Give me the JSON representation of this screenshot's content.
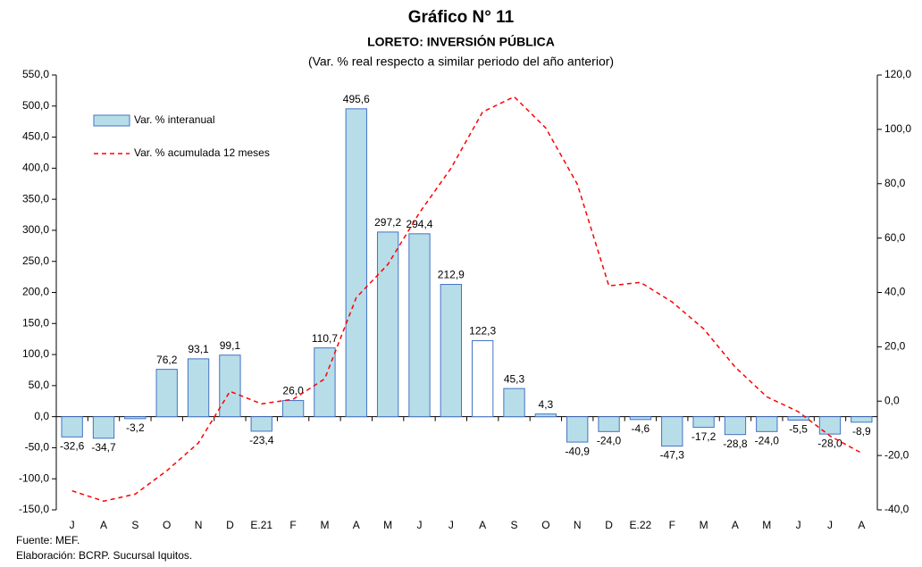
{
  "chart_data": {
    "type": "bar",
    "title": "Gráfico N° 11",
    "subtitle": "LORETO: INVERSIÓN PÚBLICA",
    "note": "(Var. % real respecto a similar periodo del año anterior)",
    "categories": [
      "J",
      "A",
      "S",
      "O",
      "N",
      "D",
      "E.21",
      "F",
      "M",
      "A",
      "M",
      "J",
      "J",
      "A",
      "S",
      "O",
      "N",
      "D",
      "E.22",
      "F",
      "M",
      "A",
      "M",
      "J",
      "J",
      "A"
    ],
    "series": [
      {
        "name": "Var. % interanual",
        "type": "bar",
        "color": "#b7dee8",
        "edge_color": "#4472c4",
        "colors": [
          "#b7dee8",
          "#b7dee8",
          "#b7dee8",
          "#b7dee8",
          "#b7dee8",
          "#b7dee8",
          "#b7dee8",
          "#b7dee8",
          "#b7dee8",
          "#b7dee8",
          "#b7dee8",
          "#b7dee8",
          "#b7dee8",
          "#ffffff",
          "#b7dee8",
          "#b7dee8",
          "#b7dee8",
          "#b7dee8",
          "#b7dee8",
          "#b7dee8",
          "#b7dee8",
          "#b7dee8",
          "#b7dee8",
          "#b7dee8",
          "#b7dee8",
          "#b7dee8"
        ],
        "values": [
          -32.6,
          -34.7,
          -3.2,
          76.2,
          93.1,
          99.1,
          -23.4,
          26.0,
          110.7,
          495.6,
          297.2,
          294.4,
          212.9,
          122.3,
          45.3,
          4.3,
          -40.9,
          -24.0,
          -4.6,
          -47.3,
          -17.2,
          -28.8,
          -24.0,
          -5.5,
          -28.0,
          -8.9
        ],
        "value_labels": [
          "-32,6",
          "-34,7",
          "-3,2",
          "76,2",
          "93,1",
          "99,1",
          "-23,4",
          "26,0",
          "110,7",
          "495,6",
          "297,2",
          "294,4",
          "212,9",
          "122,3",
          "45,3",
          "4,3",
          "-40,9",
          "-24,0",
          "-4,6",
          "-47,3",
          "-17,2",
          "-28,8",
          "-24,0",
          "-5,5",
          "-28,0",
          "-8,9"
        ]
      },
      {
        "name": "Var. % acumulada 12 meses",
        "type": "line",
        "axis": "y2",
        "color": "#ff0000",
        "dashed": true,
        "values": [
          -33,
          -36.8,
          -34.2,
          -25.6,
          -15.4,
          3.6,
          -1,
          0.7,
          8.2,
          38.1,
          50.3,
          69.3,
          85.7,
          106.4,
          112,
          100.5,
          79.8,
          42.4,
          43.7,
          36.5,
          26.6,
          12.5,
          1.6,
          -3.9,
          -12.8,
          -19.1
        ]
      }
    ],
    "ylim": [
      -150,
      550
    ],
    "yticks": [
      {
        "value": -150,
        "label": "-150,0"
      },
      {
        "value": -100,
        "label": "-100,0"
      },
      {
        "value": -50,
        "label": "-50,0"
      },
      {
        "value": 0,
        "label": "0,0"
      },
      {
        "value": 50,
        "label": "50,0"
      },
      {
        "value": 100,
        "label": "100,0"
      },
      {
        "value": 150,
        "label": "150,0"
      },
      {
        "value": 200,
        "label": "200,0"
      },
      {
        "value": 250,
        "label": "250,0"
      },
      {
        "value": 300,
        "label": "300,0"
      },
      {
        "value": 350,
        "label": "350,0"
      },
      {
        "value": 400,
        "label": "400,0"
      },
      {
        "value": 450,
        "label": "450,0"
      },
      {
        "value": 500,
        "label": "500,0"
      },
      {
        "value": 550,
        "label": "550,0"
      }
    ],
    "y2lim": [
      -40,
      120
    ],
    "y2ticks": [
      {
        "value": -40,
        "label": "-40,0"
      },
      {
        "value": -20,
        "label": "-20,0"
      },
      {
        "value": 0,
        "label": "0,0"
      },
      {
        "value": 20,
        "label": "20,0"
      },
      {
        "value": 40,
        "label": "40,0"
      },
      {
        "value": 60,
        "label": "60,0"
      },
      {
        "value": 80,
        "label": "80,0"
      },
      {
        "value": 100,
        "label": "100,0"
      },
      {
        "value": 120,
        "label": "120,0"
      }
    ],
    "legend": "upper left"
  },
  "footer": {
    "source": "Fuente: MEF.",
    "credit": "Elaboración: BCRP. Sucursal Iquitos."
  }
}
